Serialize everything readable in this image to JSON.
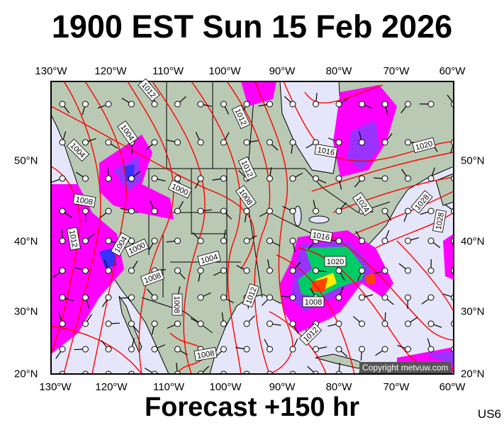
{
  "title": "1900 EST Sun 15 Feb 2026",
  "footer": "Forecast +150 hr",
  "region_code": "US6",
  "copyright": "Copyright metvuw.com",
  "longitude_labels": [
    "130°W",
    "120°W",
    "110°W",
    "100°W",
    "90°W",
    "80°W",
    "70°W",
    "60°W"
  ],
  "latitude_labels": [
    "50°N",
    "40°N",
    "30°N",
    "20°N"
  ],
  "isobar_labels": [
    "1012",
    "1012",
    "1004",
    "1004",
    "1008",
    "1000",
    "1012",
    "1008",
    "1012",
    "1004",
    "1000",
    "1008",
    "1004",
    "1008",
    "1012",
    "1008",
    "1016",
    "1020",
    "1024",
    "1028",
    "1028",
    "1016",
    "1020",
    "1008",
    "1012"
  ],
  "colors": {
    "ocean": "#e6e6fa",
    "land": "#b9c9b3",
    "isobar": "#ff0000",
    "precip_light": "#ff00ff",
    "precip_moderate": "#9933ff",
    "precip_heavy": "#3333ff",
    "precip_very_heavy": "#00cc66",
    "precip_extreme": "#ff4400"
  }
}
